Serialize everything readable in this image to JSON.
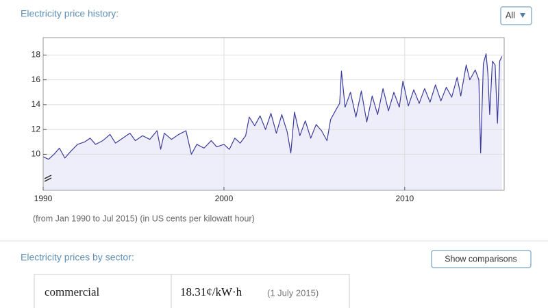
{
  "header": {
    "title": "Electricity price history:",
    "range_button": "All"
  },
  "chart_data": {
    "type": "line",
    "title": "Electricity price history:",
    "subtitle": "(from Jan 1990 to Jul 2015)  (in US cents per kilowatt hour)",
    "x": [
      1990.0,
      1990.3,
      1990.6,
      1990.9,
      1991.2,
      1991.5,
      1991.9,
      1992.3,
      1992.6,
      1992.9,
      1993.3,
      1993.7,
      1994.0,
      1994.4,
      1994.8,
      1995.1,
      1995.5,
      1995.9,
      1996.3,
      1996.5,
      1996.7,
      1997.1,
      1997.5,
      1997.9,
      1998.2,
      1998.5,
      1998.9,
      1999.3,
      1999.6,
      2000.0,
      2000.3,
      2000.6,
      2000.9,
      2001.2,
      2001.4,
      2001.7,
      2002.0,
      2002.3,
      2002.6,
      2002.9,
      2003.2,
      2003.5,
      2003.7,
      2003.9,
      2004.2,
      2004.5,
      2004.8,
      2005.1,
      2005.4,
      2005.7,
      2005.9,
      2006.2,
      2006.4,
      2006.5,
      2006.7,
      2007.0,
      2007.3,
      2007.6,
      2007.9,
      2008.2,
      2008.5,
      2008.8,
      2009.1,
      2009.4,
      2009.7,
      2009.9,
      2010.2,
      2010.5,
      2010.8,
      2011.1,
      2011.4,
      2011.7,
      2012.0,
      2012.3,
      2012.6,
      2012.9,
      2013.1,
      2013.4,
      2013.6,
      2013.9,
      2014.1,
      2014.2,
      2014.35,
      2014.5,
      2014.6,
      2014.7,
      2014.85,
      2015.0,
      2015.13,
      2015.25,
      2015.38
    ],
    "series": [
      {
        "name": "electricity price",
        "color": "#3b3b9c",
        "values": [
          9.8,
          9.6,
          10.0,
          10.5,
          9.7,
          10.2,
          10.8,
          11.0,
          11.3,
          10.8,
          11.1,
          11.6,
          10.9,
          11.3,
          11.7,
          11.1,
          11.5,
          11.2,
          11.9,
          10.4,
          11.7,
          11.2,
          11.6,
          11.9,
          10.0,
          10.8,
          10.5,
          11.1,
          10.6,
          10.8,
          10.4,
          11.3,
          10.9,
          11.5,
          13.0,
          12.3,
          13.1,
          12.0,
          13.3,
          11.7,
          13.2,
          11.8,
          10.1,
          13.4,
          11.5,
          12.7,
          11.3,
          12.4,
          11.9,
          11.1,
          12.8,
          13.6,
          14.1,
          16.7,
          13.8,
          15.0,
          13.0,
          15.1,
          12.6,
          14.7,
          13.2,
          15.3,
          13.5,
          15.0,
          13.8,
          15.9,
          13.9,
          15.2,
          14.1,
          15.3,
          14.2,
          15.6,
          14.3,
          15.4,
          14.6,
          16.2,
          14.7,
          17.2,
          16.0,
          16.8,
          16.0,
          10.1,
          17.3,
          18.1,
          16.5,
          13.2,
          17.5,
          17.2,
          12.5,
          17.5,
          17.9
        ]
      }
    ],
    "xlim": [
      1990,
      2015.5
    ],
    "xticks": [
      1990,
      2000,
      2010
    ],
    "ylim": [
      7.1,
      19.4
    ],
    "yticks": [
      10,
      12,
      14,
      16,
      18
    ],
    "grid": true,
    "fill_color": "#eeeefa"
  },
  "sector": {
    "title": "Electricity prices by sector:",
    "button": "Show comparisons",
    "rows": [
      [
        "commercial",
        "18.31¢/kW·h",
        "(1 July 2015)"
      ]
    ]
  }
}
